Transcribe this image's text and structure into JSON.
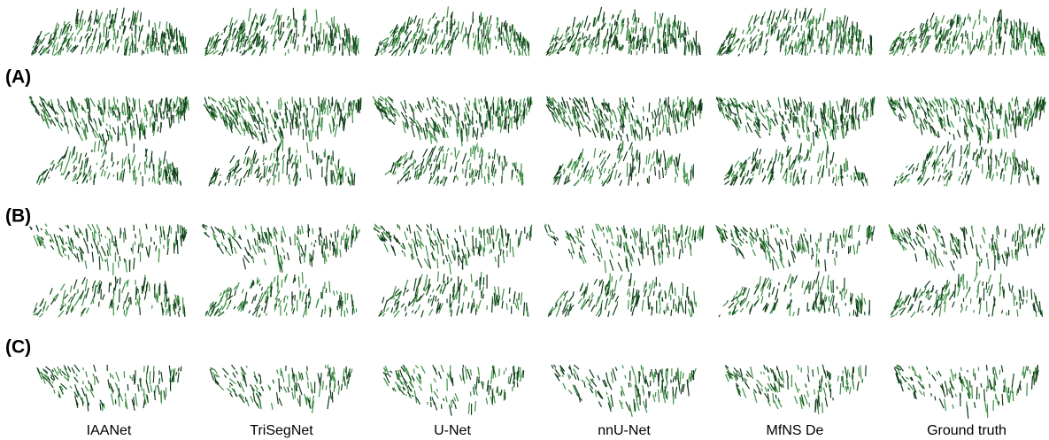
{
  "row_labels": [
    "(A)",
    "(B)",
    "(C)"
  ],
  "column_labels": [
    "IAANet",
    "TriSegNet",
    "U-Net",
    "nnU-Net",
    "MfNS De",
    "Ground truth"
  ]
}
